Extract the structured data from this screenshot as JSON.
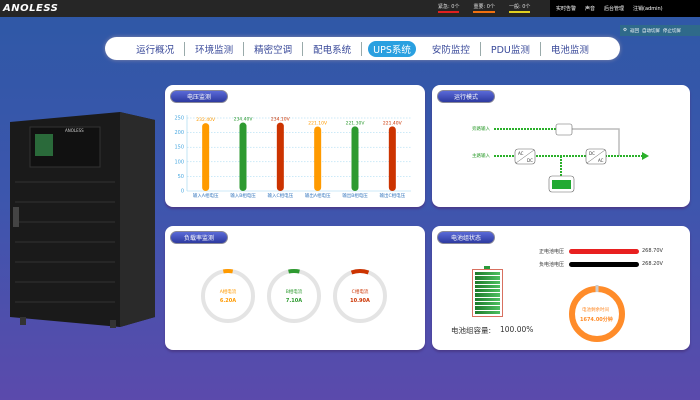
{
  "header": {
    "logo": "ANOLESS",
    "alarms": [
      {
        "label": "紧急: 0个",
        "color": "#e02020"
      },
      {
        "label": "重要: 0个",
        "color": "#f07010"
      },
      {
        "label": "一般: 0个",
        "color": "#e0d020"
      }
    ],
    "menu": [
      "实时告警",
      "声音",
      "后台管理",
      "注销(admin)"
    ],
    "tools": [
      "返回",
      "自动切屏",
      "停止切屏"
    ]
  },
  "nav": {
    "tabs": [
      "运行概况",
      "环境监测",
      "精密空调",
      "配电系统",
      "UPS系统",
      "安防监控",
      "PDU监测",
      "电池监测"
    ],
    "active": "UPS系统"
  },
  "voltage": {
    "title": "电压监测",
    "chart_data": {
      "type": "bar",
      "categories": [
        "输入A相电压",
        "输入B相电压",
        "输入C相电压",
        "输出A相电压",
        "输出B相电压",
        "输出C相电压"
      ],
      "values": [
        232.4,
        234.4,
        234.1,
        221.1,
        221.3,
        221.4
      ],
      "labels": [
        "232.40V",
        "234.40V",
        "234.10V",
        "221.10V",
        "221.30V",
        "221.40V"
      ],
      "colors": [
        "#ff9a00",
        "#2e9a30",
        "#cc3300",
        "#ff9a00",
        "#2e9a30",
        "#cc3300"
      ],
      "ylim": [
        0,
        250
      ],
      "yticks": [
        "0",
        "50",
        "100",
        "150",
        "200",
        "250"
      ],
      "grid": true
    }
  },
  "mode": {
    "title": "运行模式",
    "bypass": "旁路输入",
    "main": "主路输入",
    "rect": [
      "AC",
      "DC"
    ],
    "inv": [
      "DC",
      "AC"
    ]
  },
  "load": {
    "title": "负载率监测",
    "gauges": [
      {
        "label": "A相电流",
        "value": "6.20A",
        "color": "#ff9a00",
        "frac": 0.06
      },
      {
        "label": "B相电流",
        "value": "7.10A",
        "color": "#2e9a30",
        "frac": 0.07
      },
      {
        "label": "C相电流",
        "value": "10.90A",
        "color": "#cc3300",
        "frac": 0.11
      }
    ]
  },
  "battery": {
    "title": "电池组状态",
    "pos_label": "正电池电压",
    "pos_value": "268.70V",
    "neg_label": "负电池电压",
    "neg_value": "268.20V",
    "capacity_label": "电池组容量:",
    "capacity_value": "100.00%",
    "capacity": 100,
    "remain_label": "电池剩余时间",
    "remain_value": "1674.00分钟"
  }
}
